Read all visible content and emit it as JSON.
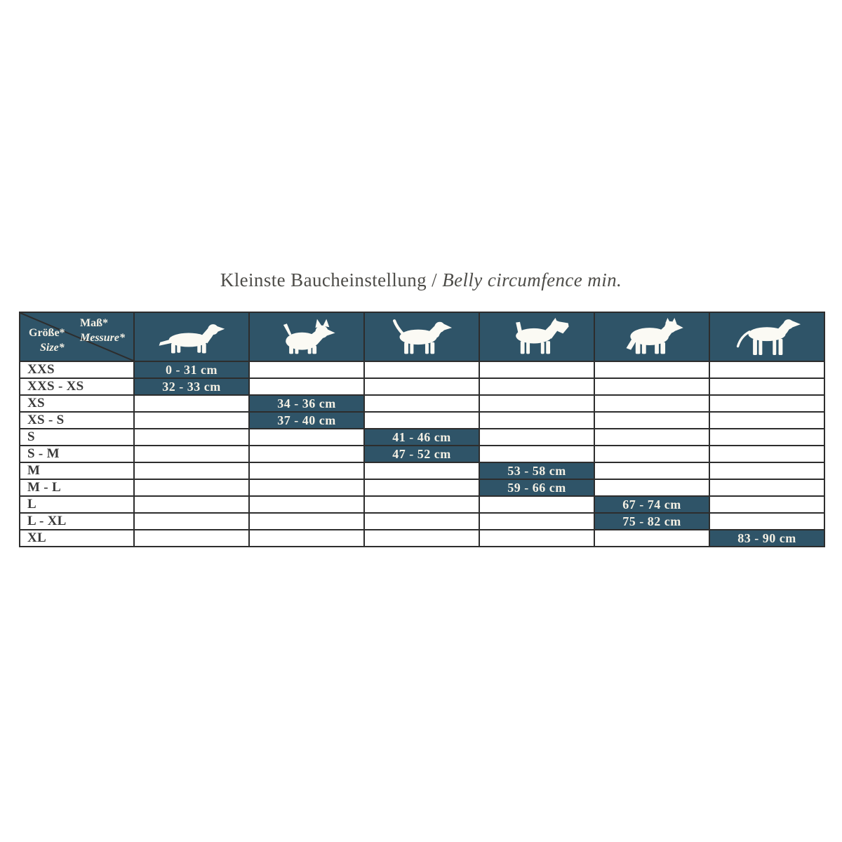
{
  "title": {
    "german": "Kleinste Baucheinstellung",
    "separator": " / ",
    "english": "Belly circumfence min."
  },
  "colors": {
    "teal": "#2f5468",
    "border": "#2d2d2d",
    "value_text": "#f4f0e4",
    "label_text": "#3a3a3a",
    "title_text": "#4d4c48"
  },
  "table": {
    "corner": {
      "measure_de": "Maß*",
      "measure_en": "Messure*",
      "size_de": "Größe*",
      "size_en": "Size*"
    },
    "columns": [
      {
        "id": "dachshund",
        "icon": "dachshund-icon",
        "symbol": "dog-dachshund"
      },
      {
        "id": "small-terrier",
        "icon": "small-terrier-icon",
        "symbol": "dog-terrier"
      },
      {
        "id": "medium-hound",
        "icon": "beagle-icon",
        "symbol": "dog-beagle"
      },
      {
        "id": "schnauzer",
        "icon": "schnauzer-icon",
        "symbol": "dog-schnauzer"
      },
      {
        "id": "husky",
        "icon": "husky-icon",
        "symbol": "dog-husky"
      },
      {
        "id": "great-dane",
        "icon": "great-dane-icon",
        "symbol": "dog-dane"
      }
    ],
    "rows": [
      {
        "label": "XXS",
        "value": "0 - 31 cm",
        "column": 1
      },
      {
        "label": "XXS - XS",
        "value": "32 - 33 cm",
        "column": 1
      },
      {
        "label": "XS",
        "value": "34 - 36 cm",
        "column": 2
      },
      {
        "label": "XS - S",
        "value": "37 - 40 cm",
        "column": 2
      },
      {
        "label": "S",
        "value": "41 - 46 cm",
        "column": 3
      },
      {
        "label": "S - M",
        "value": "47 - 52 cm",
        "column": 3
      },
      {
        "label": "M",
        "value": "53 - 58 cm",
        "column": 4
      },
      {
        "label": "M - L",
        "value": "59 - 66 cm",
        "column": 4
      },
      {
        "label": "L",
        "value": "67 - 74 cm",
        "column": 5
      },
      {
        "label": "L - XL",
        "value": "75 - 82 cm",
        "column": 5
      },
      {
        "label": "XL",
        "value": "83 - 90 cm",
        "column": 6
      }
    ]
  },
  "chart_data": {
    "type": "table",
    "title": "Kleinste Baucheinstellung / Belly circumfence min.",
    "row_header": "Größe* / Size*",
    "column_header": "Maß* / Messure*",
    "dog_columns": [
      "dachshund",
      "small terrier",
      "medium hound",
      "schnauzer",
      "husky",
      "great dane"
    ],
    "sizes": [
      "XXS",
      "XXS - XS",
      "XS",
      "XS - S",
      "S",
      "S - M",
      "M",
      "M - L",
      "L",
      "L - XL",
      "XL"
    ],
    "belly_circumference_min_cm": [
      "0 - 31 cm",
      "32 - 33 cm",
      "34 - 36 cm",
      "37 - 40 cm",
      "41 - 46 cm",
      "47 - 52 cm",
      "53 - 58 cm",
      "59 - 66 cm",
      "67 - 74 cm",
      "75 - 82 cm",
      "83 - 90 cm"
    ],
    "size_to_dog_column": [
      1,
      1,
      2,
      2,
      3,
      3,
      4,
      4,
      5,
      5,
      6
    ]
  }
}
